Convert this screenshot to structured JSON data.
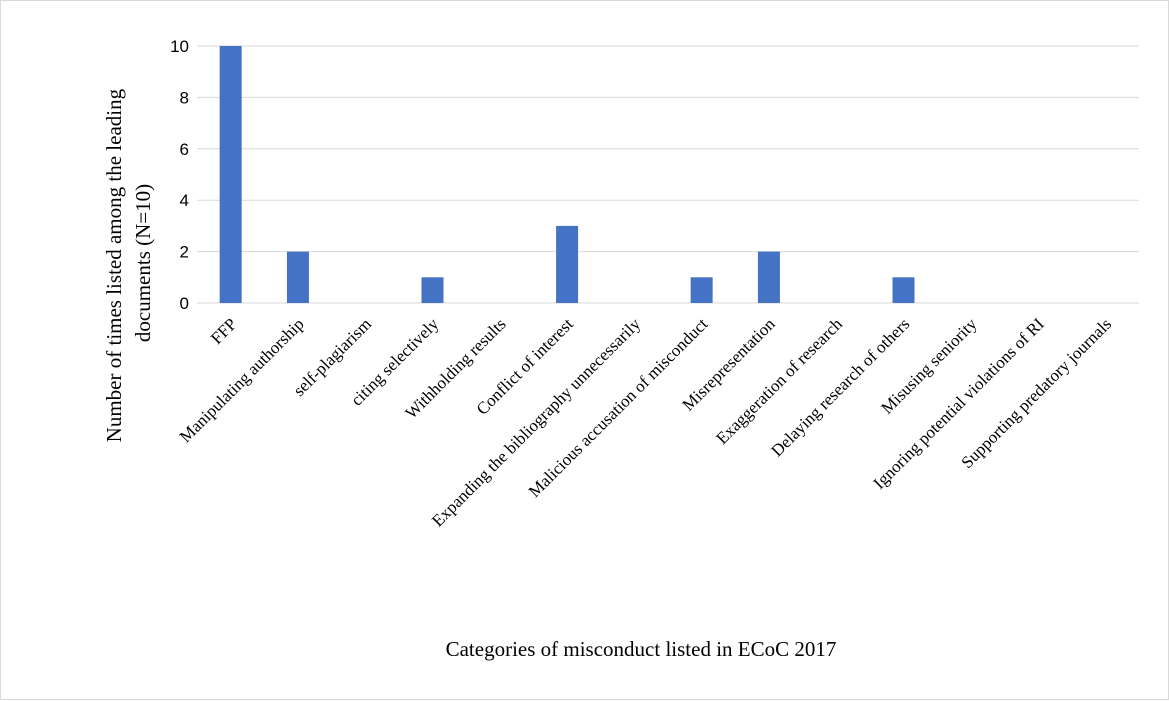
{
  "chart_data": {
    "type": "bar",
    "xlabel": "Categories of misconduct listed in ECoC 2017",
    "ylabel_lines": [
      "Number of times listed among the leading",
      "documents (N=10)"
    ],
    "categories": [
      "FFP",
      "Manipulating authorship",
      "self-plagiarism",
      "citing selectively",
      "Withholding results",
      "Conflict of interest",
      "Expanding the bibliography unnecessarily",
      "Malicious accusation of misconduct",
      "Misrepresentation",
      "Exaggeration of research",
      "Delaying research of others",
      "Misusing seniority",
      "Ignoring potential violations of RI",
      "Supporting predatory journals"
    ],
    "values": [
      10,
      2,
      0,
      1,
      0,
      3,
      0,
      1,
      2,
      0,
      1,
      0,
      0,
      0
    ],
    "ylim": [
      0,
      10
    ],
    "yticks": [
      0,
      2,
      4,
      6,
      8,
      10
    ],
    "grid": true,
    "legend": "none",
    "bar_color": "#4472c4",
    "grid_color": "#d9d9d9"
  }
}
